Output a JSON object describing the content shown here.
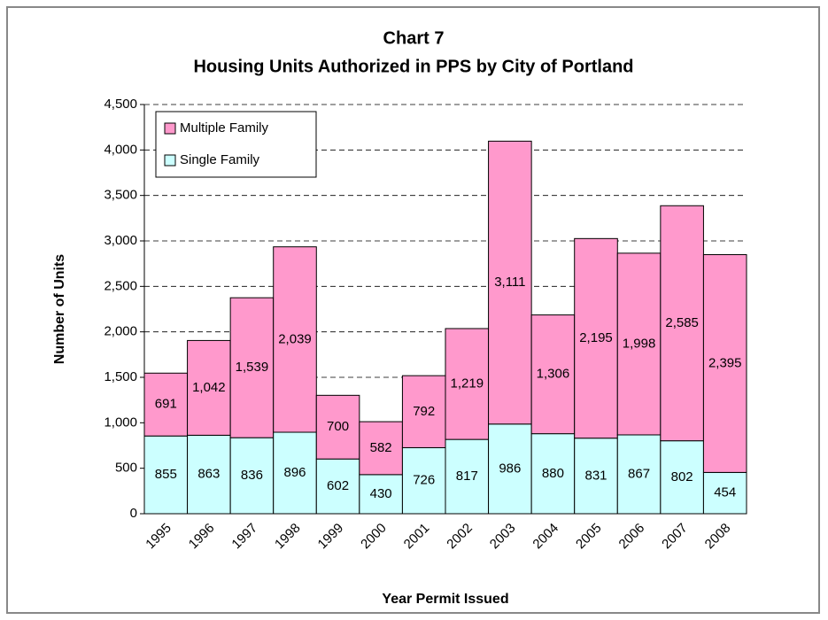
{
  "chart_data": {
    "type": "stacked_bar",
    "title": "Chart 7",
    "subtitle": "Housing Units Authorized in PPS by City of Portland",
    "xlabel": "Year Permit Issued",
    "ylabel": "Number of Units",
    "categories": [
      "1995",
      "1996",
      "1997",
      "1998",
      "1999",
      "2000",
      "2001",
      "2002",
      "2003",
      "2004",
      "2005",
      "2006",
      "2007",
      "2008"
    ],
    "series": [
      {
        "name": "Single Family",
        "color": "#ccffff",
        "values": [
          855,
          863,
          836,
          896,
          602,
          430,
          726,
          817,
          986,
          880,
          831,
          867,
          802,
          454
        ]
      },
      {
        "name": "Multiple Family",
        "color": "#ff99cc",
        "values": [
          691,
          1042,
          1539,
          2039,
          700,
          582,
          792,
          1219,
          3111,
          1306,
          2195,
          1998,
          2585,
          2395
        ],
        "value_labels": [
          "691",
          "1,042",
          "1,539",
          "2,039",
          "700",
          "582",
          "792",
          "1,219",
          "3,111",
          "1,306",
          "2,195",
          "1,998",
          "2,585",
          "2,395"
        ]
      }
    ],
    "ylim": [
      0,
      4500
    ],
    "yticks": [
      0,
      500,
      {
        "value": 1000,
        "label": "1,000"
      },
      {
        "value": 1500,
        "label": "1,500"
      },
      {
        "value": 2000,
        "label": "2,000"
      },
      {
        "value": 2500,
        "label": "2,500"
      },
      {
        "value": 3000,
        "label": "3,000"
      },
      {
        "value": 3500,
        "label": "3,500"
      },
      {
        "value": 4000,
        "label": "4,000"
      },
      {
        "value": 4500,
        "label": "4,500"
      }
    ],
    "grid": true,
    "legend": "upper left"
  }
}
